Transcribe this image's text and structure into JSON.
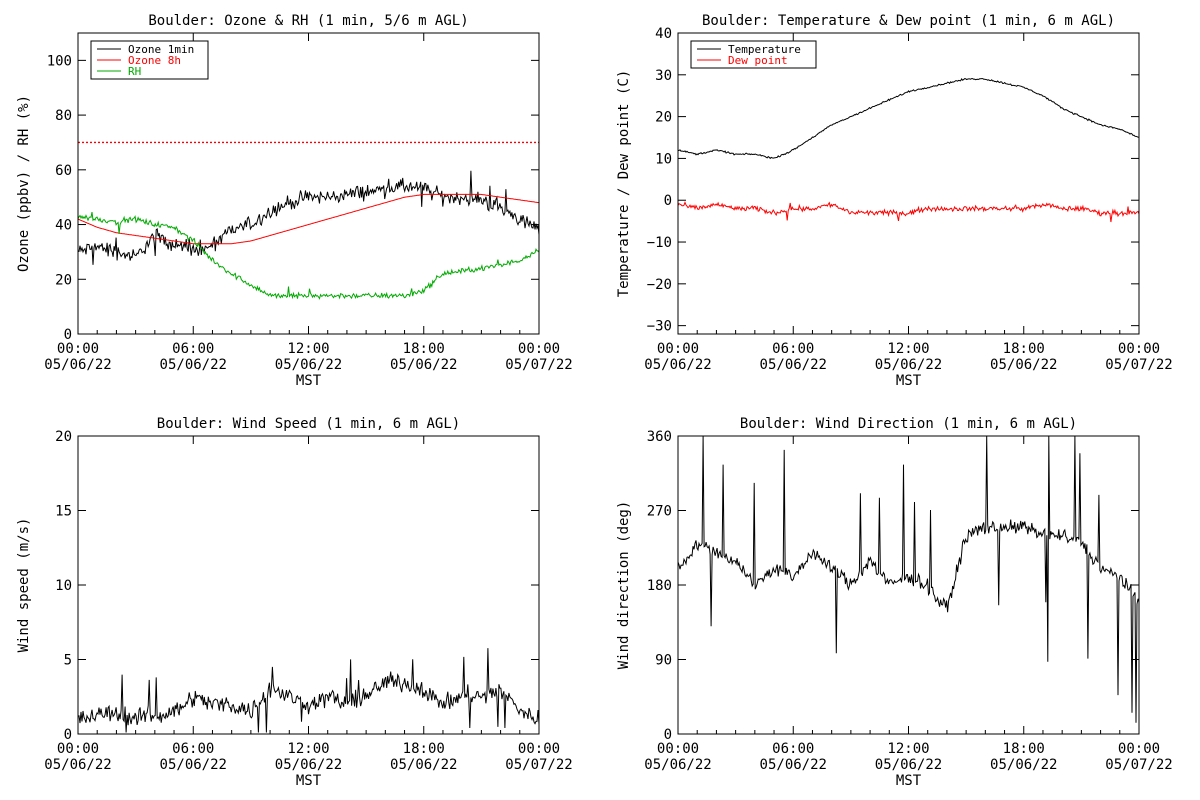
{
  "panels": [
    {
      "title": "Boulder: Ozone & RH (1 min, 5/6 m AGL)",
      "ylabel": "Ozone (ppbv) / RH (%)",
      "xlabel": "MST",
      "x_ticks": [
        "00:00",
        "06:00",
        "12:00",
        "18:00",
        "00:00"
      ],
      "x_tick_dates": [
        "05/06/22",
        "05/06/22",
        "05/06/22",
        "05/06/22",
        "05/07/22"
      ],
      "y_ticks": [
        "0",
        "20",
        "40",
        "60",
        "80",
        "100"
      ],
      "legend": [
        {
          "label": "Ozone 1min",
          "color": "#000000"
        },
        {
          "label": "Ozone 8h",
          "color": "#ff0000"
        },
        {
          "label": "RH",
          "color": "#00aa00"
        }
      ]
    },
    {
      "title": "Boulder: Temperature & Dew point (1 min, 6 m AGL)",
      "ylabel": "Temperature / Dew point (C)",
      "xlabel": "MST",
      "x_ticks": [
        "00:00",
        "06:00",
        "12:00",
        "18:00",
        "00:00"
      ],
      "x_tick_dates": [
        "05/06/22",
        "05/06/22",
        "05/06/22",
        "05/06/22",
        "05/07/22"
      ],
      "y_ticks": [
        "−30",
        "−20",
        "−10",
        "0",
        "10",
        "20",
        "30",
        "40"
      ],
      "legend": [
        {
          "label": "Temperature",
          "color": "#000000"
        },
        {
          "label": "Dew point",
          "color": "#ff0000"
        }
      ]
    },
    {
      "title": "Boulder: Wind Speed (1 min, 6 m AGL)",
      "ylabel": "Wind speed (m/s)",
      "xlabel": "MST",
      "x_ticks": [
        "00:00",
        "06:00",
        "12:00",
        "18:00",
        "00:00"
      ],
      "x_tick_dates": [
        "05/06/22",
        "05/06/22",
        "05/06/22",
        "05/06/22",
        "05/07/22"
      ],
      "y_ticks": [
        "0",
        "5",
        "10",
        "15",
        "20"
      ],
      "legend": []
    },
    {
      "title": "Boulder: Wind Direction (1 min, 6 m AGL)",
      "ylabel": "Wind direction (deg)",
      "xlabel": "MST",
      "x_ticks": [
        "00:00",
        "06:00",
        "12:00",
        "18:00",
        "00:00"
      ],
      "x_tick_dates": [
        "05/06/22",
        "05/06/22",
        "05/06/22",
        "05/06/22",
        "05/07/22"
      ],
      "y_ticks": [
        "0",
        "90",
        "180",
        "270",
        "360"
      ],
      "legend": []
    }
  ],
  "chart_data": [
    {
      "type": "line",
      "title": "Boulder: Ozone & RH (1 min, 5/6 m AGL)",
      "xlabel": "MST",
      "ylabel": "Ozone (ppbv) / RH (%)",
      "xlim": [
        "05/06/22 00:00",
        "05/07/22 00:00"
      ],
      "ylim": [
        0,
        110
      ],
      "legend_position": "top-left",
      "x": [
        "05/06/22 00:00",
        "05/06/22 01:00",
        "05/06/22 02:00",
        "05/06/22 03:00",
        "05/06/22 04:00",
        "05/06/22 05:00",
        "05/06/22 06:00",
        "05/06/22 07:00",
        "05/06/22 08:00",
        "05/06/22 09:00",
        "05/06/22 10:00",
        "05/06/22 11:00",
        "05/06/22 12:00",
        "05/06/22 13:00",
        "05/06/22 14:00",
        "05/06/22 15:00",
        "05/06/22 16:00",
        "05/06/22 17:00",
        "05/06/22 18:00",
        "05/06/22 19:00",
        "05/06/22 20:00",
        "05/06/22 21:00",
        "05/06/22 22:00",
        "05/06/22 23:00",
        "05/07/22 00:00"
      ],
      "series": [
        {
          "name": "Ozone 1min",
          "color": "#000000",
          "values": [
            30,
            32,
            30,
            28,
            36,
            33,
            30,
            32,
            38,
            40,
            45,
            48,
            50,
            50,
            51,
            52,
            53,
            54,
            53,
            50,
            50,
            49,
            46,
            42,
            38
          ]
        },
        {
          "name": "Ozone 8h",
          "color": "#ff0000",
          "values": [
            42,
            39,
            37,
            36,
            35,
            34,
            33,
            33,
            33,
            34,
            36,
            38,
            40,
            42,
            44,
            46,
            48,
            50,
            51,
            51,
            51,
            51,
            50,
            49,
            48
          ]
        },
        {
          "name": "RH",
          "color": "#00aa00",
          "values": [
            43,
            42,
            41,
            42,
            40,
            39,
            34,
            27,
            22,
            18,
            14,
            14,
            14,
            14,
            14,
            14,
            14,
            14,
            16,
            22,
            23,
            24,
            25,
            27,
            31
          ]
        }
      ],
      "reference_lines": [
        {
          "y": 70,
          "color": "#ff0000",
          "style": "dotted"
        }
      ]
    },
    {
      "type": "line",
      "title": "Boulder: Temperature & Dew point (1 min, 6 m AGL)",
      "xlabel": "MST",
      "ylabel": "Temperature / Dew point (C)",
      "xlim": [
        "05/06/22 00:00",
        "05/07/22 00:00"
      ],
      "ylim": [
        -32,
        40
      ],
      "legend_position": "top-left",
      "x": [
        "05/06/22 00:00",
        "05/06/22 01:00",
        "05/06/22 02:00",
        "05/06/22 03:00",
        "05/06/22 04:00",
        "05/06/22 05:00",
        "05/06/22 06:00",
        "05/06/22 07:00",
        "05/06/22 08:00",
        "05/06/22 09:00",
        "05/06/22 10:00",
        "05/06/22 11:00",
        "05/06/22 12:00",
        "05/06/22 13:00",
        "05/06/22 14:00",
        "05/06/22 15:00",
        "05/06/22 16:00",
        "05/06/22 17:00",
        "05/06/22 18:00",
        "05/06/22 19:00",
        "05/06/22 20:00",
        "05/06/22 21:00",
        "05/06/22 22:00",
        "05/06/22 23:00",
        "05/07/22 00:00"
      ],
      "series": [
        {
          "name": "Temperature",
          "color": "#000000",
          "values": [
            12,
            11,
            12,
            11,
            11,
            10,
            12,
            15,
            18,
            20,
            22,
            24,
            26,
            27,
            28,
            29,
            29,
            28,
            27,
            25,
            22,
            20,
            18,
            17,
            15
          ]
        },
        {
          "name": "Dew point",
          "color": "#ff0000",
          "values": [
            -1,
            -2,
            -1,
            -2,
            -2,
            -3,
            -2,
            -2,
            -1,
            -3,
            -3,
            -3,
            -3,
            -2,
            -2,
            -2,
            -2,
            -2,
            -2,
            -1,
            -2,
            -2,
            -3,
            -3,
            -3
          ]
        }
      ]
    },
    {
      "type": "line",
      "title": "Boulder: Wind Speed (1 min, 6 m AGL)",
      "xlabel": "MST",
      "ylabel": "Wind speed (m/s)",
      "xlim": [
        "05/06/22 00:00",
        "05/07/22 00:00"
      ],
      "ylim": [
        0,
        20
      ],
      "x": [
        "05/06/22 00:00",
        "05/06/22 01:00",
        "05/06/22 02:00",
        "05/06/22 03:00",
        "05/06/22 04:00",
        "05/06/22 05:00",
        "05/06/22 06:00",
        "05/06/22 07:00",
        "05/06/22 08:00",
        "05/06/22 09:00",
        "05/06/22 10:00",
        "05/06/22 11:00",
        "05/06/22 12:00",
        "05/06/22 13:00",
        "05/06/22 14:00",
        "05/06/22 15:00",
        "05/06/22 16:00",
        "05/06/22 17:00",
        "05/06/22 18:00",
        "05/06/22 19:00",
        "05/06/22 20:00",
        "05/06/22 21:00",
        "05/06/22 22:00",
        "05/06/22 23:00",
        "05/07/22 00:00"
      ],
      "series": [
        {
          "name": "",
          "color": "#000000",
          "values": [
            1,
            1.2,
            1.5,
            1,
            1.3,
            1.5,
            2.5,
            2,
            2,
            1.5,
            3,
            2.5,
            2,
            2.5,
            2,
            2.5,
            3.5,
            3.5,
            3,
            2,
            2.5,
            2.5,
            3,
            1.5,
            1
          ]
        }
      ]
    },
    {
      "type": "line",
      "title": "Boulder: Wind Direction (1 min, 6 m AGL)",
      "xlabel": "MST",
      "ylabel": "Wind direction (deg)",
      "xlim": [
        "05/06/22 00:00",
        "05/07/22 00:00"
      ],
      "ylim": [
        0,
        360
      ],
      "x": [
        "05/06/22 00:00",
        "05/06/22 01:00",
        "05/06/22 02:00",
        "05/06/22 03:00",
        "05/06/22 04:00",
        "05/06/22 05:00",
        "05/06/22 06:00",
        "05/06/22 07:00",
        "05/06/22 08:00",
        "05/06/22 09:00",
        "05/06/22 10:00",
        "05/06/22 11:00",
        "05/06/22 12:00",
        "05/06/22 13:00",
        "05/06/22 14:00",
        "05/06/22 15:00",
        "05/06/22 16:00",
        "05/06/22 17:00",
        "05/06/22 18:00",
        "05/06/22 19:00",
        "05/06/22 20:00",
        "05/06/22 21:00",
        "05/06/22 22:00",
        "05/06/22 23:00",
        "05/07/22 00:00"
      ],
      "series": [
        {
          "name": "",
          "color": "#000000",
          "values": [
            200,
            230,
            220,
            210,
            180,
            200,
            190,
            220,
            200,
            180,
            210,
            180,
            190,
            180,
            150,
            240,
            250,
            250,
            250,
            240,
            240,
            230,
            200,
            190,
            160
          ]
        }
      ]
    }
  ]
}
